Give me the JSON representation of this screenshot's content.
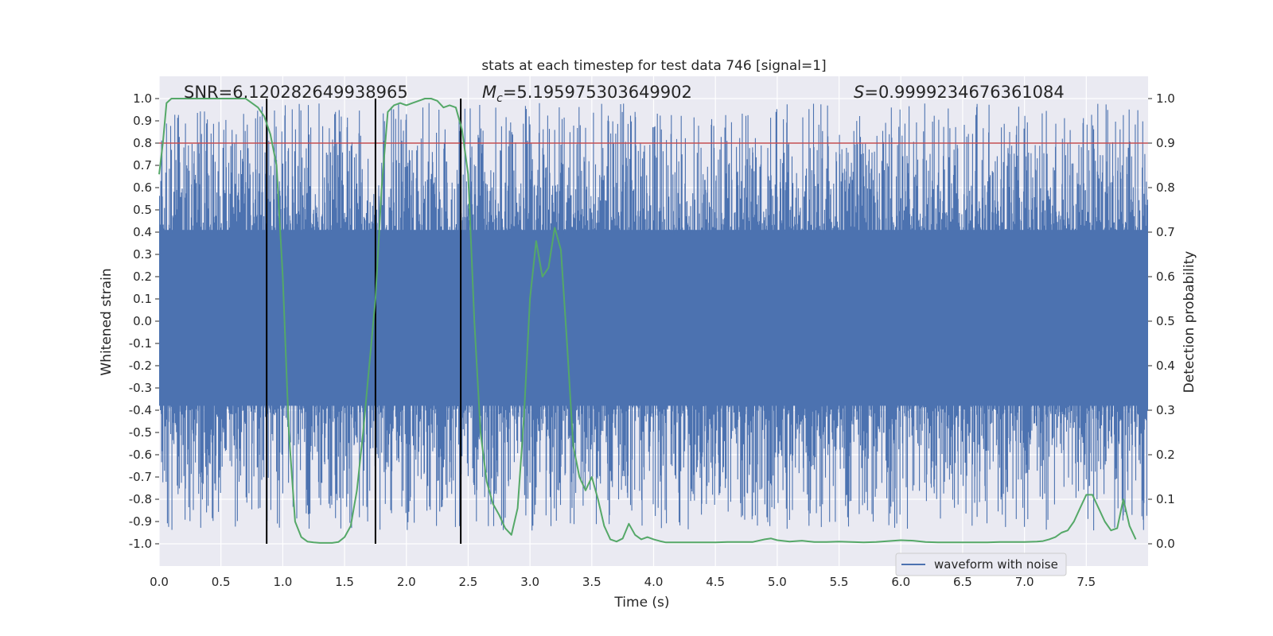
{
  "chart_data": {
    "type": "line",
    "title": "stats at each timestep for test data 746 [signal=1]",
    "xlabel": "Time (s)",
    "ylabel": "Whitened strain",
    "ylabel_right": "Detection probability",
    "xlim": [
      0.0,
      8.0
    ],
    "ylim": [
      -1.1,
      1.1
    ],
    "ylim_right": [
      -0.05,
      1.05
    ],
    "x_ticks": [
      "0.0",
      "0.5",
      "1.0",
      "1.5",
      "2.0",
      "2.5",
      "3.0",
      "3.5",
      "4.0",
      "4.5",
      "5.0",
      "5.5",
      "6.0",
      "6.5",
      "7.0",
      "7.5"
    ],
    "y_ticks": [
      "1.0",
      "0.9",
      "0.8",
      "0.7",
      "0.6",
      "0.5",
      "0.4",
      "0.3",
      "0.2",
      "0.1",
      "0.0",
      "-0.1",
      "-0.2",
      "-0.3",
      "-0.4",
      "-0.5",
      "-0.6",
      "-0.7",
      "-0.8",
      "-0.9",
      "-1.0"
    ],
    "y_ticks_right": [
      "1.0",
      "0.9",
      "0.8",
      "0.7",
      "0.6",
      "0.5",
      "0.4",
      "0.3",
      "0.2",
      "0.1",
      "0.0"
    ],
    "grid": true,
    "legend_position": "bottom-right",
    "annotations": {
      "snr": "SNR=6.120282649938965",
      "mc_symbol": "M",
      "mc_subscript": "c",
      "mc_value": "=5.195975303649902",
      "s_symbol": "S",
      "s_value": "=0.9999234676361084"
    },
    "threshold": {
      "axis": "right",
      "value": 0.9,
      "color": "#c44e52"
    },
    "vertical_lines": [
      0.87,
      1.75,
      2.44
    ],
    "series": [
      {
        "name": "waveform with noise",
        "axis": "left",
        "color": "#4c72b0",
        "envelope": {
          "core_min": -0.38,
          "core_max": 0.41,
          "peak_max": 1.0,
          "peak_min": -0.96
        }
      },
      {
        "name": "",
        "axis": "right",
        "color": "#55a868",
        "x": [
          0.0,
          0.03,
          0.06,
          0.1,
          0.15,
          0.2,
          0.3,
          0.4,
          0.5,
          0.6,
          0.65,
          0.7,
          0.75,
          0.8,
          0.85,
          0.9,
          0.95,
          1.0,
          1.05,
          1.1,
          1.15,
          1.2,
          1.25,
          1.3,
          1.35,
          1.4,
          1.45,
          1.5,
          1.55,
          1.6,
          1.65,
          1.7,
          1.75,
          1.8,
          1.85,
          1.9,
          1.95,
          2.0,
          2.05,
          2.1,
          2.15,
          2.2,
          2.25,
          2.3,
          2.35,
          2.4,
          2.45,
          2.5,
          2.55,
          2.6,
          2.65,
          2.7,
          2.75,
          2.8,
          2.85,
          2.9,
          2.95,
          3.0,
          3.05,
          3.1,
          3.15,
          3.2,
          3.25,
          3.3,
          3.35,
          3.4,
          3.45,
          3.5,
          3.55,
          3.6,
          3.65,
          3.7,
          3.75,
          3.8,
          3.85,
          3.9,
          3.95,
          4.0,
          4.05,
          4.1,
          4.2,
          4.3,
          4.4,
          4.5,
          4.6,
          4.7,
          4.8,
          4.9,
          4.95,
          5.0,
          5.1,
          5.2,
          5.3,
          5.4,
          5.5,
          5.6,
          5.7,
          5.8,
          5.9,
          6.0,
          6.1,
          6.2,
          6.3,
          6.4,
          6.5,
          6.6,
          6.7,
          6.8,
          6.9,
          7.0,
          7.1,
          7.15,
          7.2,
          7.25,
          7.3,
          7.35,
          7.4,
          7.45,
          7.5,
          7.55,
          7.6,
          7.65,
          7.7,
          7.75,
          7.8,
          7.85,
          7.9
        ],
        "values": [
          0.83,
          0.9,
          0.99,
          1.0,
          1.0,
          1.0,
          1.0,
          1.0,
          1.0,
          1.0,
          1.0,
          1.0,
          0.99,
          0.98,
          0.96,
          0.92,
          0.85,
          0.6,
          0.25,
          0.05,
          0.015,
          0.005,
          0.003,
          0.002,
          0.002,
          0.002,
          0.004,
          0.015,
          0.04,
          0.12,
          0.25,
          0.4,
          0.55,
          0.8,
          0.97,
          0.985,
          0.99,
          0.985,
          0.99,
          0.995,
          1.0,
          1.0,
          0.995,
          0.98,
          0.985,
          0.98,
          0.93,
          0.83,
          0.5,
          0.25,
          0.14,
          0.09,
          0.065,
          0.035,
          0.02,
          0.08,
          0.28,
          0.55,
          0.68,
          0.6,
          0.62,
          0.71,
          0.66,
          0.45,
          0.22,
          0.15,
          0.12,
          0.15,
          0.1,
          0.04,
          0.01,
          0.005,
          0.012,
          0.045,
          0.02,
          0.01,
          0.015,
          0.01,
          0.006,
          0.003,
          0.003,
          0.003,
          0.003,
          0.003,
          0.004,
          0.004,
          0.004,
          0.01,
          0.012,
          0.008,
          0.005,
          0.007,
          0.004,
          0.004,
          0.005,
          0.004,
          0.003,
          0.004,
          0.006,
          0.008,
          0.007,
          0.004,
          0.003,
          0.003,
          0.003,
          0.003,
          0.003,
          0.004,
          0.004,
          0.004,
          0.005,
          0.006,
          0.01,
          0.015,
          0.025,
          0.03,
          0.05,
          0.08,
          0.11,
          0.11,
          0.08,
          0.05,
          0.03,
          0.035,
          0.1,
          0.04,
          0.01
        ]
      }
    ]
  }
}
